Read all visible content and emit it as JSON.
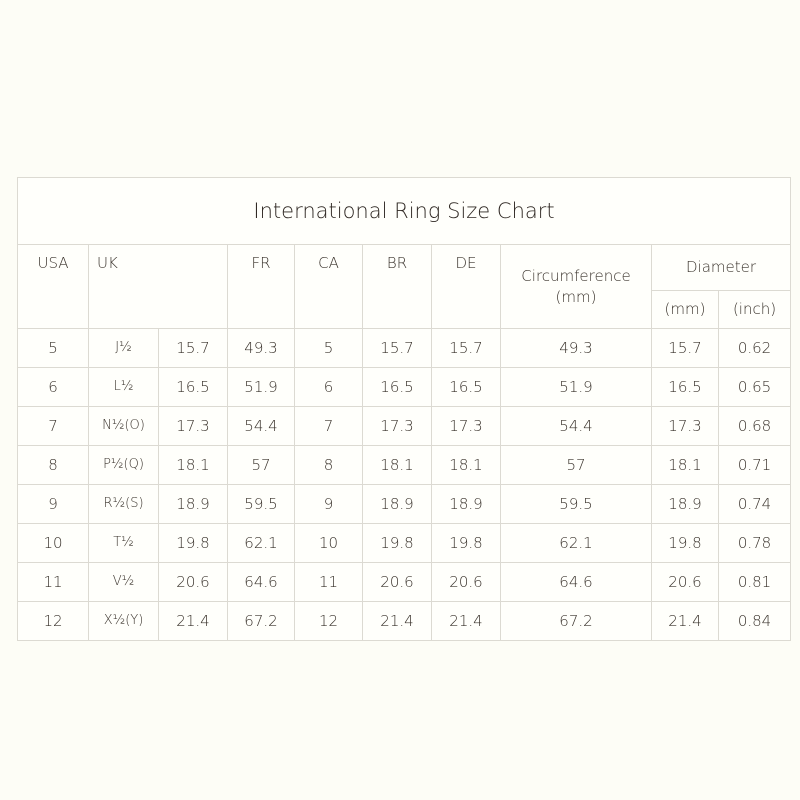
{
  "title": "International Ring Size Chart",
  "headers": {
    "usa": "USA",
    "uk": "UK",
    "fr": "FR",
    "ca": "CA",
    "br": "BR",
    "de": "DE",
    "circumference": "Circumference",
    "circumference_unit": "(mm)",
    "diameter": "Diameter",
    "diameter_mm": "(mm)",
    "diameter_inch": "(inch)"
  },
  "rows": [
    [
      "5",
      "J½",
      "15.7",
      "49.3",
      "5",
      "15.7",
      "15.7",
      "49.3",
      "15.7",
      "0.62"
    ],
    [
      "6",
      "L½",
      "16.5",
      "51.9",
      "6",
      "16.5",
      "16.5",
      "51.9",
      "16.5",
      "0.65"
    ],
    [
      "7",
      "N½(O)",
      "17.3",
      "54.4",
      "7",
      "17.3",
      "17.3",
      "54.4",
      "17.3",
      "0.68"
    ],
    [
      "8",
      "P½(Q)",
      "18.1",
      "57",
      "8",
      "18.1",
      "18.1",
      "57",
      "18.1",
      "0.71"
    ],
    [
      "9",
      "R½(S)",
      "18.9",
      "59.5",
      "9",
      "18.9",
      "18.9",
      "59.5",
      "18.9",
      "0.74"
    ],
    [
      "10",
      "T½",
      "19.8",
      "62.1",
      "10",
      "19.8",
      "19.8",
      "62.1",
      "19.8",
      "0.78"
    ],
    [
      "11",
      "V½",
      "20.6",
      "64.6",
      "11",
      "20.6",
      "20.6",
      "64.6",
      "20.6",
      "0.81"
    ],
    [
      "12",
      "X½(Y)",
      "21.4",
      "67.2",
      "12",
      "21.4",
      "21.4",
      "67.2",
      "21.4",
      "0.84"
    ]
  ]
}
